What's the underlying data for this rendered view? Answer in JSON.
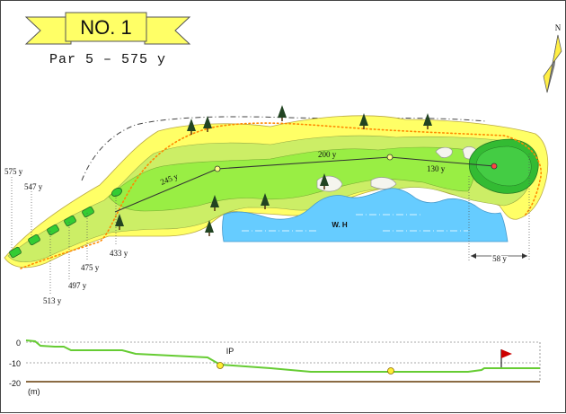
{
  "hole": {
    "number_label": "NO. 1",
    "par_line": "Par 5  –  575 y"
  },
  "compass": {
    "label": "N"
  },
  "tee_yardages": [
    "575 y",
    "547 y",
    "513 y",
    "497 y",
    "475 y",
    "433 y"
  ],
  "fairway_distances": [
    "245 y",
    "200 y",
    "130 y"
  ],
  "green_depth": "58 y",
  "hazard_label": "W. H",
  "elevation_profile": {
    "y_ticks": [
      "0",
      "-10",
      "-20"
    ],
    "unit": "(m)",
    "ip_label": "IP"
  },
  "colors": {
    "banner": "#ffff66",
    "rough": "#ffff66",
    "fairway": "#ccee66",
    "landing_zone": "#99ee44",
    "green": "#33bb33",
    "putting_surface": "#22aa22",
    "water": "#66ccff",
    "tee": "#33cc33",
    "profile_line": "#66cc33",
    "flag": "#cc0000"
  },
  "icons": [
    "tree-icon",
    "bunker-icon",
    "flag-icon",
    "compass-icon",
    "pin-icon"
  ]
}
